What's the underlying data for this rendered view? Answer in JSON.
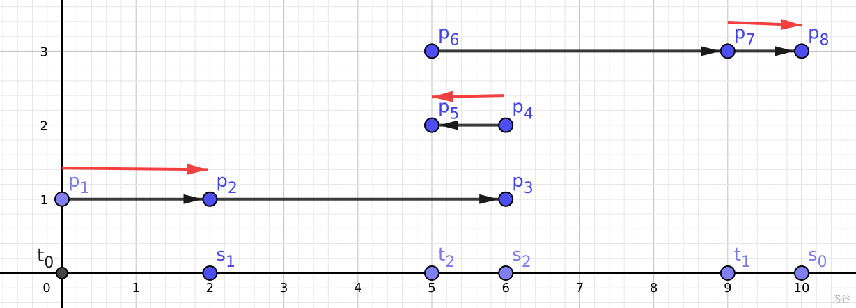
{
  "axes": {
    "x_ticks": [
      "0",
      "1",
      "2",
      "3",
      "4",
      "5",
      "6",
      "7",
      "8",
      "9",
      "10"
    ],
    "y_ticks": [
      "1",
      "2",
      "3"
    ],
    "x_range": [
      -0.83,
      10.75
    ],
    "y_range": [
      -0.47,
      3.7
    ],
    "grid": true,
    "minor_step": 0.2
  },
  "colors": {
    "point_dark": "#4d4df2",
    "point_light": "#7f7ff2",
    "label_dark": "#4444e6",
    "label_light": "#7a7ae8",
    "origin": "#444444",
    "segment": "#1a1a1a",
    "red_arrow": "#f24040"
  },
  "points": [
    {
      "name": "p",
      "sub": "1",
      "x": 0,
      "y": 1,
      "style": "light"
    },
    {
      "name": "p",
      "sub": "2",
      "x": 2,
      "y": 1,
      "style": "dark"
    },
    {
      "name": "p",
      "sub": "3",
      "x": 6,
      "y": 1,
      "style": "dark"
    },
    {
      "name": "p",
      "sub": "4",
      "x": 6,
      "y": 2,
      "style": "dark"
    },
    {
      "name": "p",
      "sub": "5",
      "x": 5,
      "y": 2,
      "style": "dark"
    },
    {
      "name": "p",
      "sub": "6",
      "x": 5,
      "y": 3,
      "style": "dark"
    },
    {
      "name": "p",
      "sub": "7",
      "x": 9,
      "y": 3,
      "style": "dark"
    },
    {
      "name": "p",
      "sub": "8",
      "x": 10,
      "y": 3,
      "style": "dark"
    },
    {
      "name": "t",
      "sub": "0",
      "x": 0,
      "y": 0,
      "style": "origin"
    },
    {
      "name": "s",
      "sub": "1",
      "x": 2,
      "y": 0,
      "style": "dark"
    },
    {
      "name": "t",
      "sub": "2",
      "x": 5,
      "y": 0,
      "style": "light"
    },
    {
      "name": "s",
      "sub": "2",
      "x": 6,
      "y": 0,
      "style": "light"
    },
    {
      "name": "t",
      "sub": "1",
      "x": 9,
      "y": 0,
      "style": "light"
    },
    {
      "name": "s",
      "sub": "0",
      "x": 10,
      "y": 0,
      "style": "light"
    }
  ],
  "vectors": [
    {
      "from": [
        0,
        1
      ],
      "to": [
        2,
        1
      ]
    },
    {
      "from": [
        2,
        1
      ],
      "to": [
        6,
        1
      ]
    },
    {
      "from": [
        6,
        2
      ],
      "to": [
        5,
        2
      ]
    },
    {
      "from": [
        5,
        3
      ],
      "to": [
        9,
        3
      ]
    },
    {
      "from": [
        9,
        3
      ],
      "to": [
        10,
        3
      ]
    }
  ],
  "red_arrows": [
    {
      "from": [
        0,
        1.42
      ],
      "to": [
        1.97,
        1.4
      ]
    },
    {
      "from": [
        5.97,
        2.4
      ],
      "to": [
        5.0,
        2.38
      ]
    },
    {
      "from": [
        9.0,
        3.39
      ],
      "to": [
        10.0,
        3.35
      ]
    }
  ],
  "watermark": "洛谷"
}
